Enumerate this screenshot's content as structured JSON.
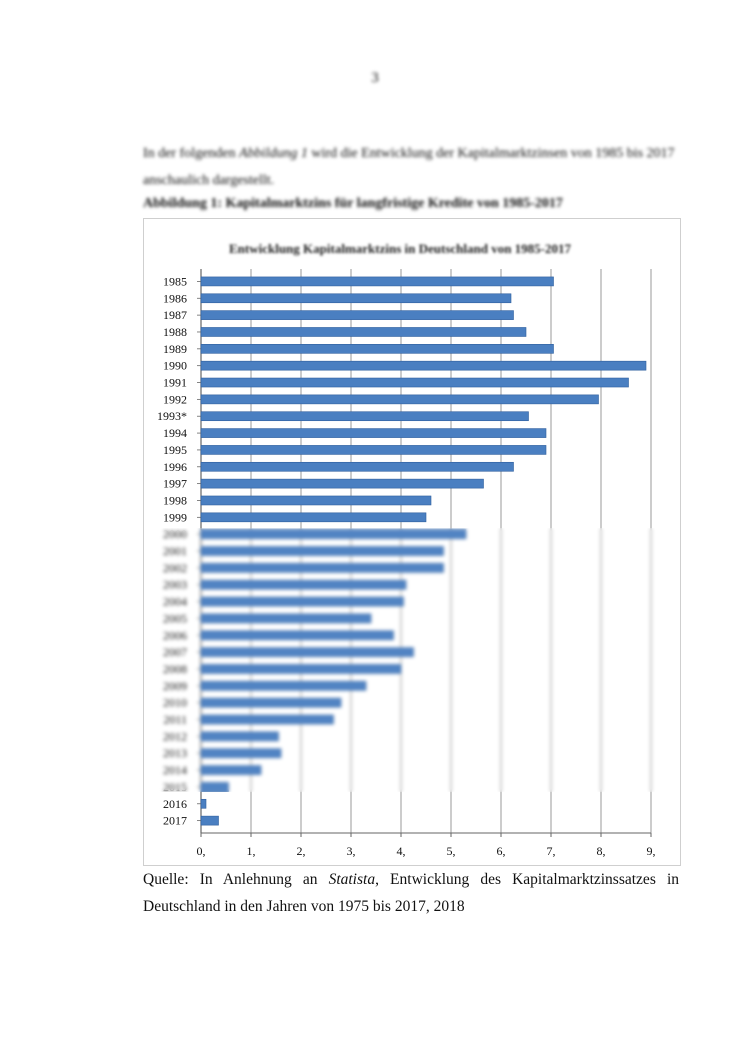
{
  "page_number": "3",
  "intro": {
    "before": "In der folgenden ",
    "ref": "Abbildung 1",
    "after": " wird die Entwicklung der Kapitalmarktzinsen von 1985 bis 2017 anschaulich dargestellt."
  },
  "figure_caption": "Abbildung 1: Kapitalmarktzins für langfristige Kredite von 1985-2017",
  "source": {
    "prefix": "Quelle: In Anlehnung an ",
    "publisher": "Statista",
    "suffix": ", Entwicklung des Kapitalmarktzinssatzes in Deutschland in den Jahren von 1975 bis 2017, 2018"
  },
  "chart_data": {
    "type": "bar",
    "orientation": "horizontal",
    "title": "Entwicklung Kapitalmarktzins in Deutschland von 1985-2017",
    "categories": [
      "1985",
      "1986",
      "1987",
      "1988",
      "1989",
      "1990",
      "1991",
      "1992",
      "1993*",
      "1994",
      "1995",
      "1996",
      "1997",
      "1998",
      "1999",
      "2000",
      "2001",
      "2002",
      "2003",
      "2004",
      "2005",
      "2006",
      "2007",
      "2008",
      "2009",
      "2010",
      "2011",
      "2012",
      "2013",
      "2014",
      "2015",
      "2016",
      "2017"
    ],
    "values": [
      7.05,
      6.2,
      6.25,
      6.5,
      7.05,
      8.9,
      8.55,
      7.95,
      6.55,
      6.9,
      6.9,
      6.25,
      5.65,
      4.6,
      4.5,
      5.3,
      4.85,
      4.85,
      4.1,
      4.05,
      3.4,
      3.85,
      4.25,
      4.0,
      3.3,
      2.8,
      2.65,
      1.55,
      1.6,
      1.2,
      0.55,
      0.1,
      0.35
    ],
    "xticks": [
      "0,",
      "1,",
      "2,",
      "3,",
      "4,",
      "5,",
      "6,",
      "7,",
      "8,",
      "9,"
    ],
    "xlim": [
      0,
      9
    ],
    "grid": true,
    "bar_color": "#4a7fc1",
    "legend": false
  }
}
